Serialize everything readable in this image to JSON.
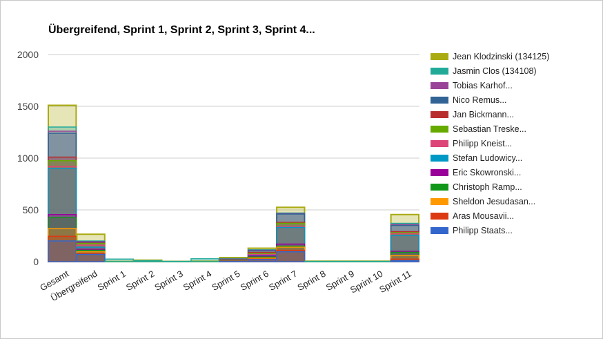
{
  "chart_data": {
    "type": "bar",
    "title": "Übergreifend, Sprint 1, Sprint 2, Sprint 3, Sprint 4...",
    "xlabel": "",
    "ylabel": "",
    "ylim": [
      0,
      2000
    ],
    "yticks": [
      0,
      500,
      1000,
      1500,
      2000
    ],
    "grid": true,
    "legend_position": "right",
    "categories": [
      "Gesamt",
      "Übergreifend",
      "Sprint 1",
      "Sprint 2",
      "Sprint 3",
      "Sprint 4",
      "Sprint 5",
      "Sprint 6",
      "Sprint 7",
      "Sprint 8",
      "Sprint 9",
      "Sprint 10",
      "Sprint 11"
    ],
    "series": [
      {
        "name": "Jean Klodzinski (134125)",
        "color": "#AAAA11",
        "values": [
          1510,
          265,
          3,
          15,
          3,
          5,
          40,
          130,
          525,
          5,
          5,
          5,
          455
        ]
      },
      {
        "name": "Jasmin Clos (134108)",
        "color": "#22AA99",
        "values": [
          1300,
          200,
          25,
          10,
          3,
          28,
          30,
          115,
          470,
          3,
          3,
          3,
          370
        ]
      },
      {
        "name": "Tobias Karhof...",
        "color": "#994499",
        "values": [
          1260,
          195,
          0,
          0,
          0,
          0,
          25,
          110,
          465,
          0,
          0,
          0,
          360
        ]
      },
      {
        "name": "Nico Remus...",
        "color": "#316395",
        "values": [
          1240,
          190,
          0,
          0,
          0,
          0,
          22,
          105,
          460,
          0,
          0,
          0,
          350
        ]
      },
      {
        "name": "Jan Bickmann...",
        "color": "#B82E2E",
        "values": [
          1010,
          180,
          0,
          0,
          0,
          0,
          18,
          90,
          380,
          0,
          0,
          0,
          290
        ]
      },
      {
        "name": "Sebastian Treske...",
        "color": "#66AA00",
        "values": [
          975,
          175,
          0,
          0,
          0,
          0,
          15,
          80,
          370,
          0,
          0,
          0,
          280
        ]
      },
      {
        "name": "Philipp Kneist...",
        "color": "#DD4477",
        "values": [
          920,
          160,
          0,
          0,
          0,
          0,
          12,
          70,
          340,
          0,
          0,
          0,
          270
        ]
      },
      {
        "name": "Stefan Ludowicy...",
        "color": "#0099C6",
        "values": [
          900,
          140,
          0,
          0,
          0,
          0,
          10,
          60,
          330,
          0,
          0,
          0,
          255
        ]
      },
      {
        "name": "Eric Skowronski...",
        "color": "#990099",
        "values": [
          455,
          120,
          0,
          0,
          0,
          0,
          8,
          55,
          170,
          0,
          0,
          0,
          100
        ]
      },
      {
        "name": "Christoph Ramp...",
        "color": "#109618",
        "values": [
          425,
          110,
          0,
          0,
          0,
          0,
          6,
          45,
          150,
          0,
          0,
          0,
          90
        ]
      },
      {
        "name": "Sheldon Jesudasan...",
        "color": "#FF9900",
        "values": [
          320,
          95,
          0,
          0,
          0,
          0,
          4,
          35,
          140,
          0,
          0,
          0,
          60
        ]
      },
      {
        "name": "Aras Mousavii...",
        "color": "#DC3912",
        "values": [
          245,
          80,
          0,
          0,
          0,
          0,
          2,
          25,
          110,
          0,
          0,
          0,
          25
        ]
      },
      {
        "name": "Philipp Staats...",
        "color": "#3366CC",
        "values": [
          200,
          70,
          0,
          0,
          0,
          0,
          1,
          20,
          95,
          0,
          0,
          0,
          10
        ]
      }
    ]
  }
}
